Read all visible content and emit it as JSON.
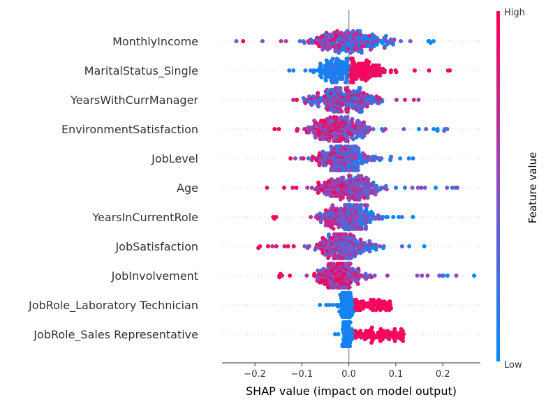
{
  "chart_data": {
    "type": "scatter",
    "subtype": "beeswarm",
    "xlabel": "SHAP value (impact on model output)",
    "xlim": [
      -0.27,
      0.28
    ],
    "xticks": [
      -0.2,
      -0.1,
      0.0,
      0.1,
      0.2
    ],
    "xtick_labels": [
      "−0.2",
      "−0.1",
      "0.0",
      "0.1",
      "0.2"
    ],
    "grid": false,
    "zero_line": true,
    "colorbar": {
      "title": "Feature value",
      "high_label": "High",
      "low_label": "Low",
      "low_color": "#008bfb",
      "mid_color": "#8b4ec0",
      "high_color": "#ff0052"
    },
    "features": [
      {
        "name": "MonthlyIncome",
        "min": -0.245,
        "max": 0.205,
        "center": 0.0,
        "spread": 0.09,
        "pattern": "mixed_high_left"
      },
      {
        "name": "MaritalStatus_Single",
        "min": -0.135,
        "max": 0.22,
        "center": 0.0,
        "spread": 0.08,
        "pattern": "high_right_split"
      },
      {
        "name": "YearsWithCurrManager",
        "min": -0.17,
        "max": 0.17,
        "center": -0.01,
        "spread": 0.07,
        "pattern": "mixed"
      },
      {
        "name": "EnvironmentSatisfaction",
        "min": -0.175,
        "max": 0.215,
        "center": -0.02,
        "spread": 0.07,
        "pattern": "high_left"
      },
      {
        "name": "JobLevel",
        "min": -0.145,
        "max": 0.14,
        "center": -0.01,
        "spread": 0.06,
        "pattern": "mixed_low_right"
      },
      {
        "name": "Age",
        "min": -0.19,
        "max": 0.27,
        "center": 0.0,
        "spread": 0.07,
        "pattern": "high_left"
      },
      {
        "name": "YearsInCurrentRole",
        "min": -0.17,
        "max": 0.155,
        "center": 0.0,
        "spread": 0.06,
        "pattern": "high_left"
      },
      {
        "name": "JobSatisfaction",
        "min": -0.2,
        "max": 0.17,
        "center": -0.01,
        "spread": 0.06,
        "pattern": "high_left"
      },
      {
        "name": "JobInvolvement",
        "min": -0.155,
        "max": 0.27,
        "center": -0.02,
        "spread": 0.05,
        "pattern": "high_left"
      },
      {
        "name": "JobRole_Laboratory Technician",
        "min": -0.07,
        "max": 0.09,
        "center": -0.005,
        "spread": 0.012,
        "pattern": "high_right_tail"
      },
      {
        "name": "JobRole_Sales Representative",
        "min": -0.04,
        "max": 0.12,
        "center": -0.005,
        "spread": 0.008,
        "pattern": "high_right_tail"
      }
    ]
  }
}
